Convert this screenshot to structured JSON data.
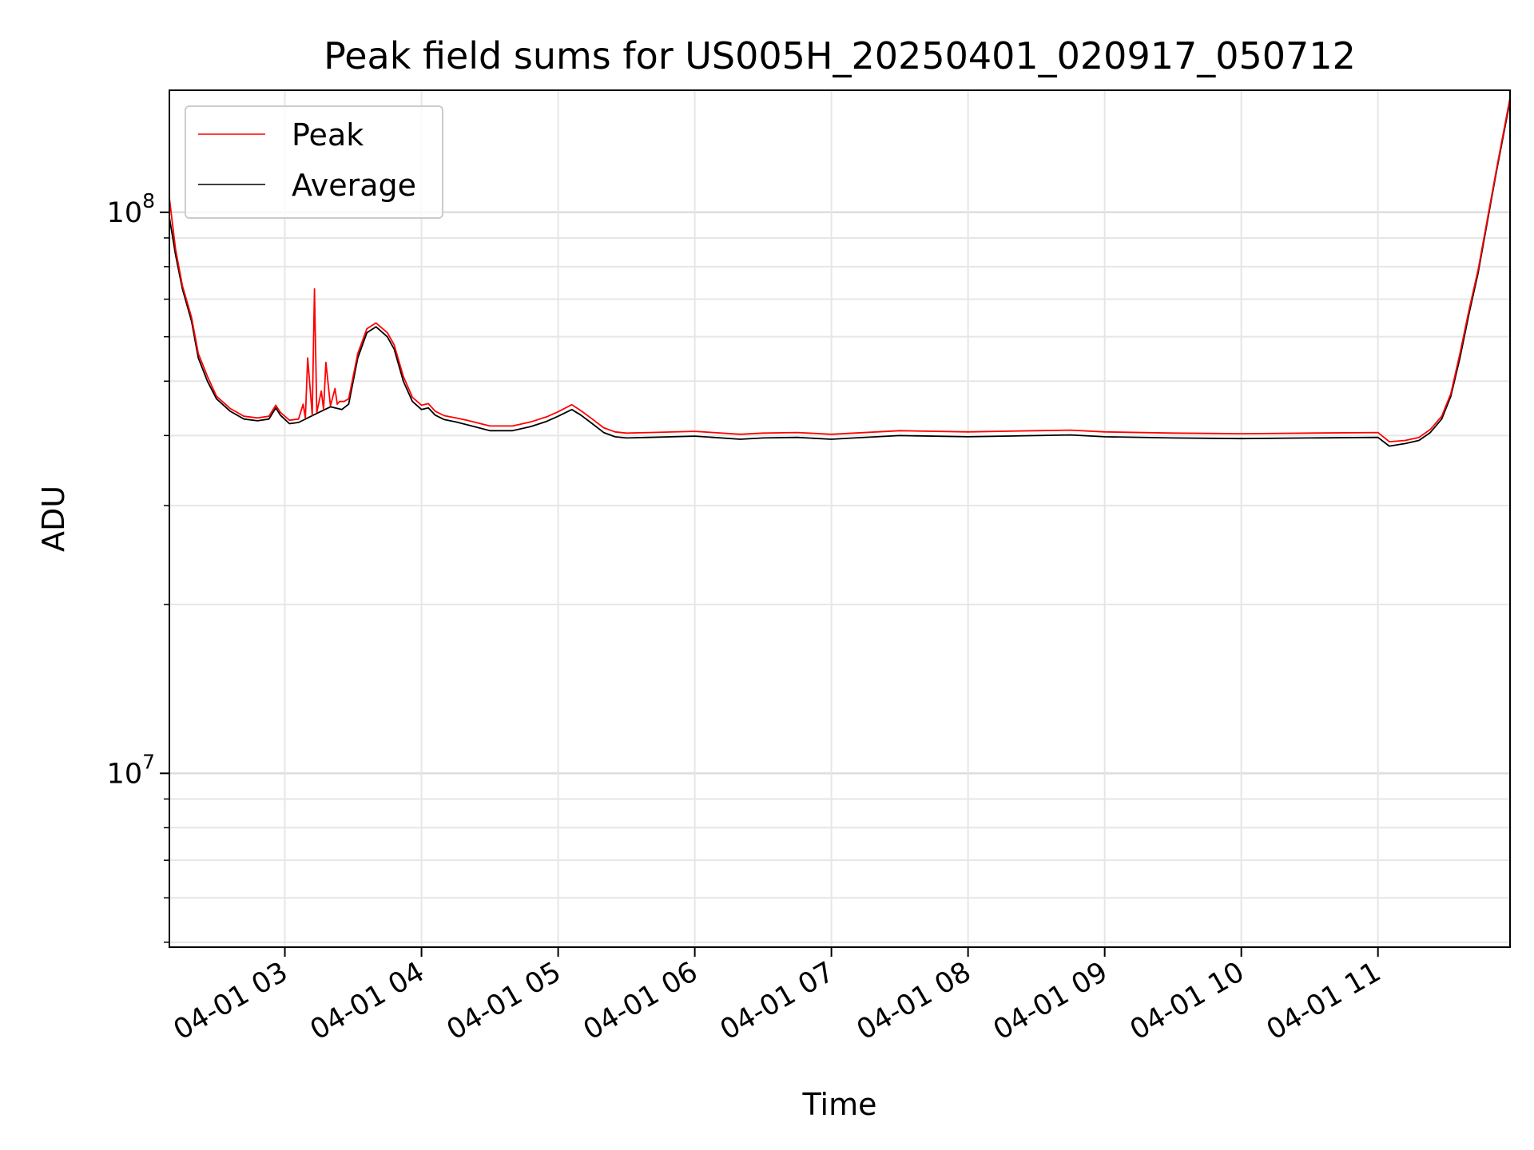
{
  "chart_data": {
    "type": "line",
    "title": "Peak field sums for US005H_20250401_020917_050712",
    "xlabel": "Time",
    "ylabel": "ADU",
    "xlim": [
      "2025-04-01T02:09:17",
      "2025-04-01T11:58:00"
    ],
    "ylim": [
      4900000,
      165000000
    ],
    "yscale": "log",
    "grid": true,
    "legend_position": "top-left",
    "x_ticks": [
      {
        "label": "04-01 03",
        "value": "2025-04-01T03:00"
      },
      {
        "label": "04-01 04",
        "value": "2025-04-01T04:00"
      },
      {
        "label": "04-01 05",
        "value": "2025-04-01T05:00"
      },
      {
        "label": "04-01 06",
        "value": "2025-04-01T06:00"
      },
      {
        "label": "04-01 07",
        "value": "2025-04-01T07:00"
      },
      {
        "label": "04-01 08",
        "value": "2025-04-01T08:00"
      },
      {
        "label": "04-01 09",
        "value": "2025-04-01T09:00"
      },
      {
        "label": "04-01 10",
        "value": "2025-04-01T10:00"
      },
      {
        "label": "04-01 11",
        "value": "2025-04-01T11:00"
      }
    ],
    "y_ticks": [
      {
        "base": "10",
        "exp": "7",
        "value": 10000000
      },
      {
        "base": "10",
        "exp": "8",
        "value": 100000000
      }
    ],
    "series": [
      {
        "name": "Average",
        "color": "#000000",
        "x": [
          "2025-04-01T02:09:17",
          "2025-04-01T02:12",
          "2025-04-01T02:15",
          "2025-04-01T02:19",
          "2025-04-01T02:22",
          "2025-04-01T02:26",
          "2025-04-01T02:30",
          "2025-04-01T02:36",
          "2025-04-01T02:42",
          "2025-04-01T02:48",
          "2025-04-01T02:53",
          "2025-04-01T02:56",
          "2025-04-01T02:58",
          "2025-04-01T03:02",
          "2025-04-01T03:06",
          "2025-04-01T03:10",
          "2025-04-01T03:15",
          "2025-04-01T03:20",
          "2025-04-01T03:25",
          "2025-04-01T03:28",
          "2025-04-01T03:32",
          "2025-04-01T03:36",
          "2025-04-01T03:40",
          "2025-04-01T03:45",
          "2025-04-01T03:48",
          "2025-04-01T03:52",
          "2025-04-01T03:56",
          "2025-04-01T04:00",
          "2025-04-01T04:03",
          "2025-04-01T04:06",
          "2025-04-01T04:10",
          "2025-04-01T04:15",
          "2025-04-01T04:20",
          "2025-04-01T04:30",
          "2025-04-01T04:40",
          "2025-04-01T04:48",
          "2025-04-01T04:55",
          "2025-04-01T05:00",
          "2025-04-01T05:06",
          "2025-04-01T05:10",
          "2025-04-01T05:15",
          "2025-04-01T05:20",
          "2025-04-01T05:25",
          "2025-04-01T05:30",
          "2025-04-01T05:40",
          "2025-04-01T06:00",
          "2025-04-01T06:20",
          "2025-04-01T06:30",
          "2025-04-01T06:45",
          "2025-04-01T07:00",
          "2025-04-01T07:10",
          "2025-04-01T07:30",
          "2025-04-01T08:00",
          "2025-04-01T08:30",
          "2025-04-01T08:45",
          "2025-04-01T09:00",
          "2025-04-01T09:30",
          "2025-04-01T10:00",
          "2025-04-01T10:30",
          "2025-04-01T11:00",
          "2025-04-01T11:05",
          "2025-04-01T11:12",
          "2025-04-01T11:18",
          "2025-04-01T11:23",
          "2025-04-01T11:28",
          "2025-04-01T11:32",
          "2025-04-01T11:36",
          "2025-04-01T11:40",
          "2025-04-01T11:44",
          "2025-04-01T11:48",
          "2025-04-01T11:52",
          "2025-04-01T11:58"
        ],
        "values": [
          98000000,
          84000000,
          73000000,
          64000000,
          55000000,
          50000000,
          46500000,
          44200000,
          42800000,
          42500000,
          42800000,
          44800000,
          43500000,
          42000000,
          42200000,
          43000000,
          44000000,
          45000000,
          44500000,
          45500000,
          55000000,
          61000000,
          62500000,
          60000000,
          57000000,
          50000000,
          46000000,
          44500000,
          44800000,
          43500000,
          42700000,
          42300000,
          41800000,
          40800000,
          40800000,
          41500000,
          42400000,
          43300000,
          44500000,
          43500000,
          42000000,
          40500000,
          39800000,
          39600000,
          39700000,
          39900000,
          39400000,
          39600000,
          39700000,
          39400000,
          39600000,
          40000000,
          39800000,
          40000000,
          40100000,
          39800000,
          39600000,
          39500000,
          39600000,
          39700000,
          38300000,
          38700000,
          39200000,
          40500000,
          42800000,
          47000000,
          55000000,
          66000000,
          78000000,
          96000000,
          118000000,
          158000000
        ]
      },
      {
        "name": "Peak",
        "color": "#ff0000",
        "x": [
          "2025-04-01T02:09:17",
          "2025-04-01T02:12",
          "2025-04-01T02:15",
          "2025-04-01T02:19",
          "2025-04-01T02:22",
          "2025-04-01T02:26",
          "2025-04-01T02:30",
          "2025-04-01T02:36",
          "2025-04-01T02:42",
          "2025-04-01T02:48",
          "2025-04-01T02:53",
          "2025-04-01T02:56",
          "2025-04-01T02:58",
          "2025-04-01T03:02",
          "2025-04-01T03:06",
          "2025-04-01T03:08",
          "2025-04-01T03:09",
          "2025-04-01T03:10",
          "2025-04-01T03:12",
          "2025-04-01T03:13",
          "2025-04-01T03:14",
          "2025-04-01T03:16",
          "2025-04-01T03:17",
          "2025-04-01T03:18",
          "2025-04-01T03:20",
          "2025-04-01T03:22",
          "2025-04-01T03:23",
          "2025-04-01T03:24",
          "2025-04-01T03:26",
          "2025-04-01T03:28",
          "2025-04-01T03:32",
          "2025-04-01T03:36",
          "2025-04-01T03:40",
          "2025-04-01T03:45",
          "2025-04-01T03:48",
          "2025-04-01T03:52",
          "2025-04-01T03:56",
          "2025-04-01T04:00",
          "2025-04-01T04:03",
          "2025-04-01T04:06",
          "2025-04-01T04:10",
          "2025-04-01T04:15",
          "2025-04-01T04:20",
          "2025-04-01T04:30",
          "2025-04-01T04:40",
          "2025-04-01T04:48",
          "2025-04-01T04:55",
          "2025-04-01T05:00",
          "2025-04-01T05:06",
          "2025-04-01T05:10",
          "2025-04-01T05:15",
          "2025-04-01T05:20",
          "2025-04-01T05:25",
          "2025-04-01T05:30",
          "2025-04-01T05:40",
          "2025-04-01T06:00",
          "2025-04-01T06:20",
          "2025-04-01T06:30",
          "2025-04-01T06:45",
          "2025-04-01T07:00",
          "2025-04-01T07:10",
          "2025-04-01T07:30",
          "2025-04-01T08:00",
          "2025-04-01T08:30",
          "2025-04-01T08:45",
          "2025-04-01T09:00",
          "2025-04-01T09:30",
          "2025-04-01T10:00",
          "2025-04-01T10:30",
          "2025-04-01T11:00",
          "2025-04-01T11:05",
          "2025-04-01T11:12",
          "2025-04-01T11:18",
          "2025-04-01T11:23",
          "2025-04-01T11:28",
          "2025-04-01T11:32",
          "2025-04-01T11:36",
          "2025-04-01T11:40",
          "2025-04-01T11:44",
          "2025-04-01T11:48",
          "2025-04-01T11:52",
          "2025-04-01T11:58"
        ],
        "values": [
          106000000,
          86000000,
          74000000,
          65000000,
          56000000,
          51000000,
          47000000,
          44700000,
          43300000,
          43000000,
          43300000,
          45300000,
          44000000,
          42600000,
          42800000,
          45500000,
          43000000,
          55000000,
          43500000,
          73000000,
          44000000,
          48000000,
          44500000,
          54000000,
          45200000,
          48500000,
          45500000,
          46000000,
          46000000,
          46500000,
          56000000,
          62000000,
          63500000,
          61000000,
          58000000,
          51000000,
          46800000,
          45300000,
          45600000,
          44200000,
          43400000,
          43000000,
          42600000,
          41600000,
          41600000,
          42300000,
          43200000,
          44100000,
          45400000,
          44300000,
          42800000,
          41300000,
          40600000,
          40400000,
          40500000,
          40700000,
          40200000,
          40400000,
          40500000,
          40200000,
          40400000,
          40800000,
          40600000,
          40800000,
          40900000,
          40600000,
          40400000,
          40300000,
          40400000,
          40500000,
          39000000,
          39200000,
          39700000,
          41000000,
          43300000,
          47500000,
          56000000,
          67000000,
          79000000,
          97000000,
          119000000,
          160000000
        ]
      }
    ]
  }
}
